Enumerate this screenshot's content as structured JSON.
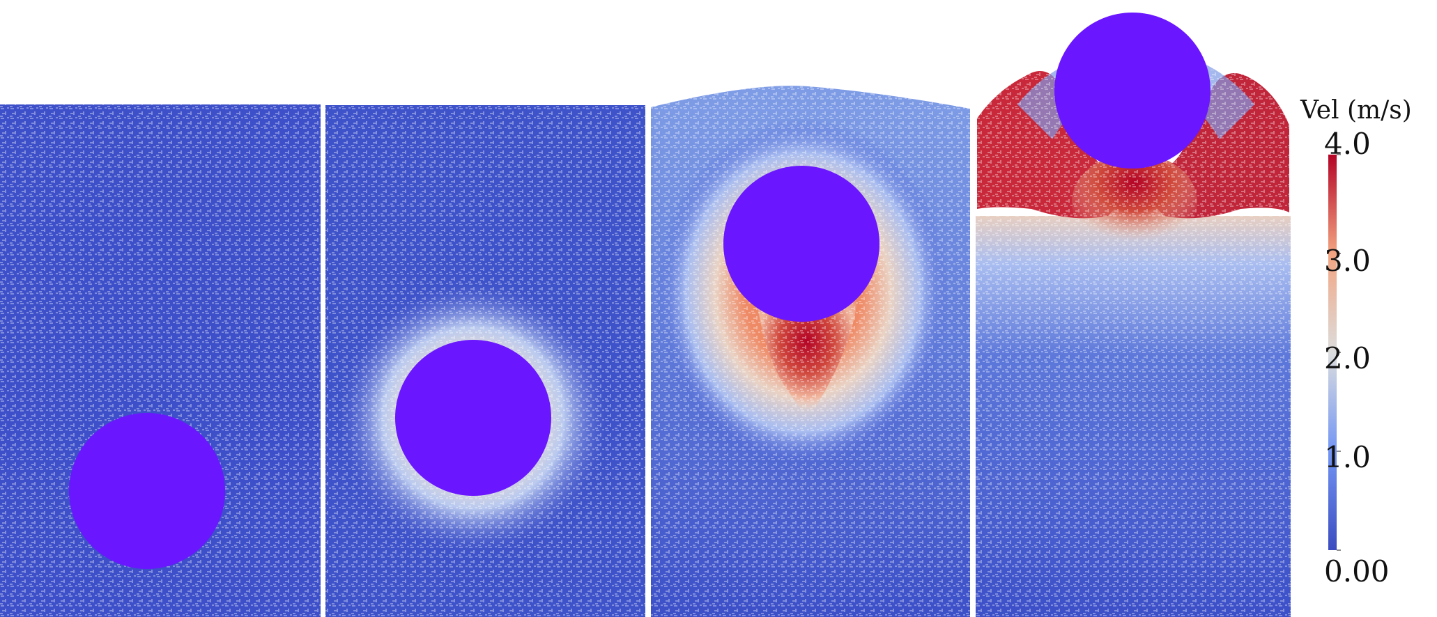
{
  "figure": {
    "panel_count": 4,
    "particle_colors": {
      "slow": "#3c4fc8",
      "medium": "#dcdde5",
      "fast": "#b40426",
      "sphere": "#6a16ff",
      "gap": "#ffffff"
    }
  },
  "colorbar": {
    "title": "Vel (m/s)",
    "ticks": [
      "4.0",
      "3.0",
      "2.0",
      "1.0",
      "0.00"
    ],
    "min": 0.0,
    "max": 4.0,
    "colormap": "coolwarm"
  }
}
